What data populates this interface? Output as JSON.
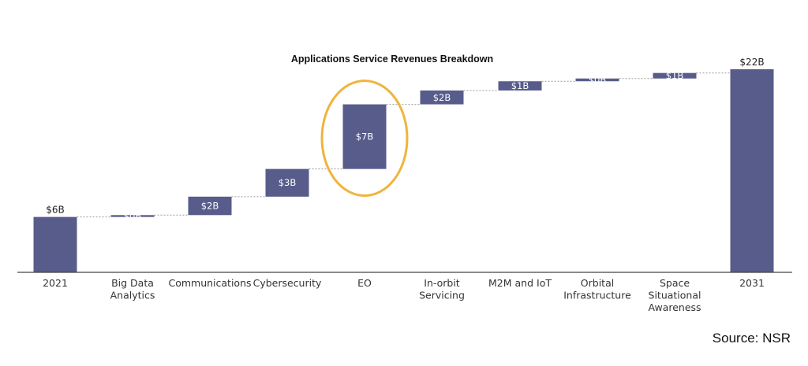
{
  "chart_data": {
    "type": "bar",
    "subtype": "waterfall",
    "title": "Applications Service Revenues Breakdown",
    "xlabel": "",
    "ylabel": "",
    "categories": [
      "2021",
      "Big Data\nAnalytics",
      "Communications",
      "Cybersecurity",
      "EO",
      "In-orbit\nServicing",
      "M2M and IoT",
      "Orbital\nInfrastructure",
      "Space\nSituational\nAwareness",
      "2031"
    ],
    "values": [
      6.0,
      0.2,
      2.0,
      3.0,
      7.0,
      1.5,
      1.0,
      0.3,
      0.6,
      22.0
    ],
    "value_labels": [
      "$6B",
      "$0B",
      "$2B",
      "$3B",
      "$7B",
      "$2B",
      "$1B",
      "$0B",
      "$1B",
      "$22B"
    ],
    "kinds": [
      "total",
      "delta",
      "delta",
      "delta",
      "delta",
      "delta",
      "delta",
      "delta",
      "delta",
      "total"
    ],
    "ylim": [
      0,
      22
    ],
    "grid": false,
    "legend": "none",
    "highlighted_category": "EO",
    "colors": {
      "bar": "#575c8b",
      "highlight": "#efb43c",
      "connector": "#9a9a9a",
      "axis": "#444444"
    }
  },
  "source_text": "Source: NSR"
}
